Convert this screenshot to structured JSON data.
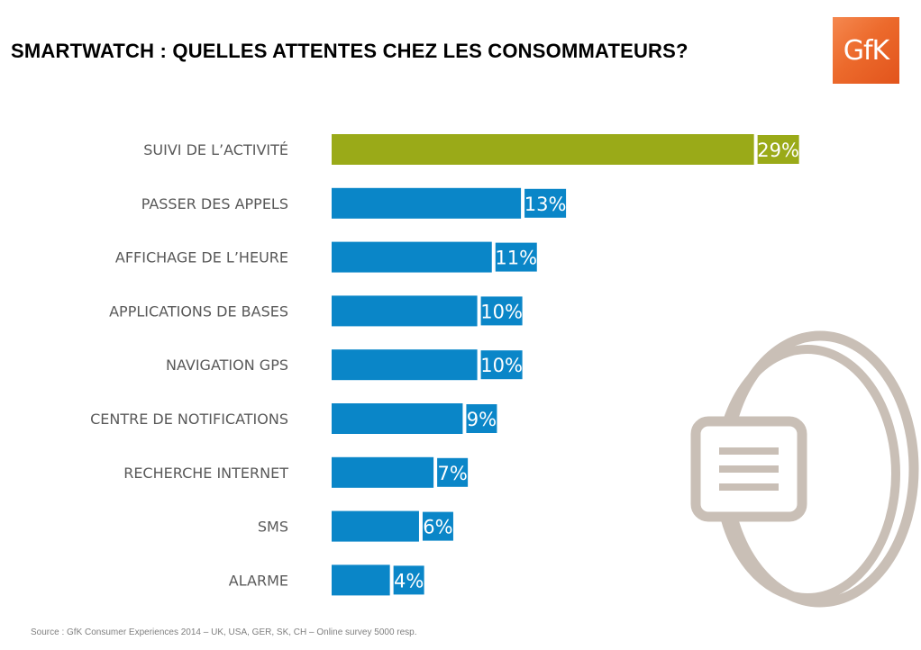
{
  "header": {
    "title": "SMARTWATCH : QUELLES ATTENTES CHEZ LES CONSOMMATEURS?",
    "logo_text": "GfK"
  },
  "icons": {
    "logo": "gfk-logo",
    "illustration": "smartwatch-icon"
  },
  "colors": {
    "highlight": "#9aaa18",
    "bar": "#0a86c8",
    "category_text": "#595959",
    "logo": "#ec6a2c",
    "icon": "#c9bfb6"
  },
  "chart_data": {
    "type": "bar",
    "orientation": "horizontal",
    "categories": [
      "SUIVI DE L’ACTIVITÉ",
      "PASSER DES APPELS",
      "AFFICHAGE DE L’HEURE",
      "APPLICATIONS DE BASES",
      "NAVIGATION GPS",
      "CENTRE DE NOTIFICATIONS",
      "RECHERCHE INTERNET",
      "SMS",
      "ALARME"
    ],
    "values": [
      29,
      13,
      11,
      10,
      10,
      9,
      7,
      6,
      4
    ],
    "value_labels": [
      "29%",
      "13%",
      "11%",
      "10%",
      "10%",
      "9%",
      "7%",
      "6%",
      "4%"
    ],
    "highlighted_index": 0,
    "title": "SMARTWATCH : QUELLES ATTENTES CHEZ LES CONSOMMATEURS?",
    "xlabel": "",
    "ylabel": "",
    "grid": false,
    "legend": "none"
  },
  "footer": {
    "source": "Source : GfK Consumer Experiences 2014 – UK, USA, GER, SK, CH – Online survey 5000 resp."
  }
}
